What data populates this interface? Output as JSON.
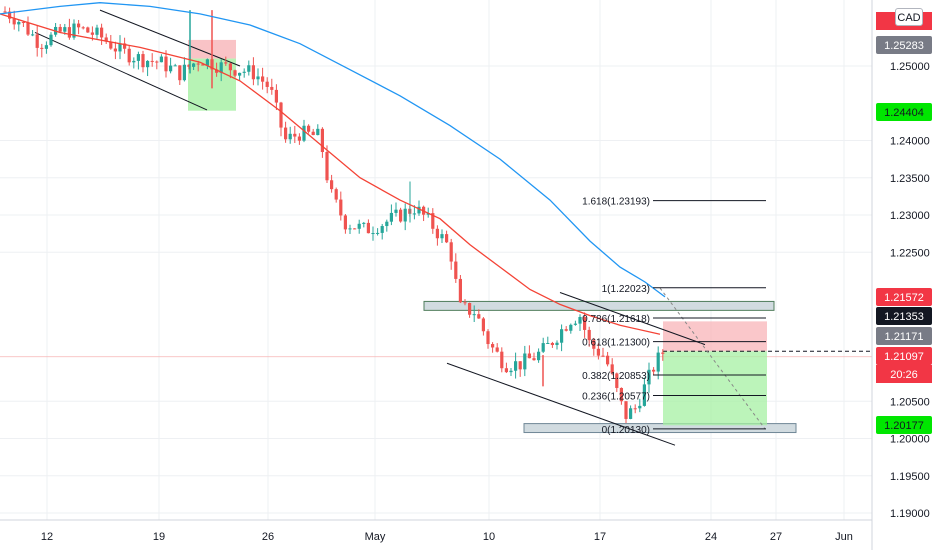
{
  "currency": "CAD",
  "colors": {
    "up": "#26a69a",
    "down": "#ef5350",
    "ema_fast": "#f44336",
    "ema_slow": "#2196f3",
    "grid": "#eef0f3",
    "axis_text": "#131722",
    "zone_fill": "#d1dbe0",
    "zone_edge": "#4f7d5c",
    "stop_fill": "#f8b4b8",
    "target_fill": "#a5f0a3"
  },
  "chart_data": {
    "type": "candlestick",
    "symbol_currency": "CAD",
    "x_ticks": [
      "12",
      "19",
      "26",
      "May",
      "10",
      "17",
      "24",
      "27",
      "Jun"
    ],
    "y_ticks": [
      "1.25000",
      "1.24000",
      "1.23500",
      "1.23000",
      "1.22500",
      "1.20500",
      "1.20000",
      "1.19500",
      "1.19000"
    ],
    "ylim": [
      1.188,
      1.262
    ],
    "price_labels": [
      {
        "id": "top",
        "text": "1.25283",
        "value": 1.25283,
        "bg": "#787b86",
        "fg": "#ffffff"
      },
      {
        "id": "green-upper",
        "text": "1.24404",
        "value": 1.24404,
        "bg": "#00e600",
        "fg": "#131722"
      },
      {
        "id": "red",
        "text": "1.21572",
        "value": 1.21572,
        "bg": "#f23645",
        "fg": "#ffffff"
      },
      {
        "id": "black",
        "text": "1.21353",
        "value": 1.21353,
        "bg": "#131722",
        "fg": "#ffffff"
      },
      {
        "id": "gray",
        "text": "1.21171",
        "value": 1.21171,
        "bg": "#787b86",
        "fg": "#ffffff"
      },
      {
        "id": "last",
        "text": "1.21097",
        "value": 1.21097,
        "bg": "#f23645",
        "fg": "#ffffff"
      },
      {
        "id": "green-lower",
        "text": "1.20177",
        "value": 1.20177,
        "bg": "#00e600",
        "fg": "#131722"
      }
    ],
    "countdown": "20:26",
    "fib_levels": [
      {
        "ratio": "1.618",
        "value": 1.23193,
        "label": "1.618(1.23193)"
      },
      {
        "ratio": "1",
        "value": 1.22023,
        "label": "1(1.22023)"
      },
      {
        "ratio": "0.786",
        "value": 1.21618,
        "label": "0.786(1.21618)"
      },
      {
        "ratio": "0.618",
        "value": 1.213,
        "label": "0.618(1.21300)"
      },
      {
        "ratio": "0.382",
        "value": 1.20853,
        "label": "0.382(1.20853)"
      },
      {
        "ratio": "0.236",
        "value": 1.20577,
        "label": "0.236(1.20577)"
      },
      {
        "ratio": "0",
        "value": 1.2013,
        "label": "0(1.20130)"
      }
    ],
    "zones": [
      {
        "name": "resistance",
        "from": 1.2172,
        "to": 1.2184
      },
      {
        "name": "support",
        "from": 1.2008,
        "to": 1.202
      }
    ],
    "trade": {
      "entry": 1.21171,
      "stop": 1.21572,
      "target": 1.20177
    },
    "grid": true
  }
}
